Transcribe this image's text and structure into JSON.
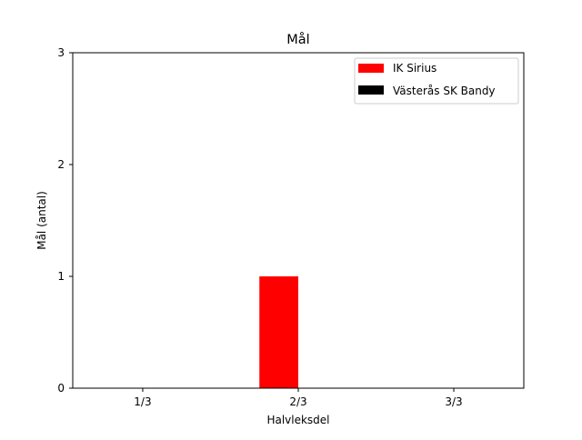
{
  "chart_data": {
    "type": "bar",
    "title": "Mål",
    "xlabel": "Halvleksdel",
    "ylabel": "Mål (antal)",
    "categories": [
      "1/3",
      "2/3",
      "3/3"
    ],
    "ylim": [
      0,
      3
    ],
    "yticks": [
      0,
      1,
      2,
      3
    ],
    "grid": false,
    "legend_position": "top-right",
    "series": [
      {
        "name": "IK Sirius",
        "color": "#ff0000",
        "values": [
          0,
          1,
          0
        ]
      },
      {
        "name": "Västerås SK Bandy",
        "color": "#000000",
        "values": [
          0,
          0,
          0
        ]
      }
    ]
  }
}
